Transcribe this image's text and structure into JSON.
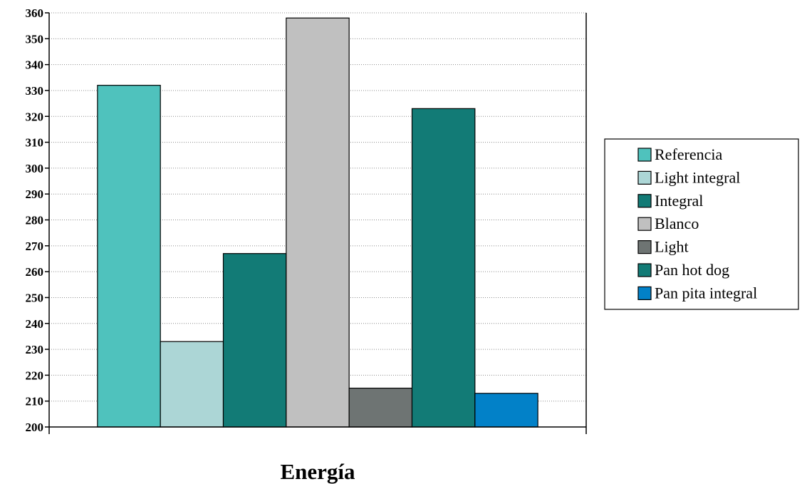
{
  "chart_data": {
    "type": "bar",
    "title": "",
    "xlabel": "",
    "ylabel": "",
    "categories": [
      "Energía"
    ],
    "ylim": [
      200,
      360
    ],
    "ytick_step": 10,
    "grid": true,
    "legend_position": "right",
    "series": [
      {
        "name": "Referencia",
        "values": [
          332
        ],
        "color": "#4fc2bd"
      },
      {
        "name": "Light integral",
        "values": [
          233
        ],
        "color": "#acd6d6"
      },
      {
        "name": "Integral",
        "values": [
          267
        ],
        "color": "#127b76"
      },
      {
        "name": "Blanco",
        "values": [
          358
        ],
        "color": "#c0c0c0"
      },
      {
        "name": "Light",
        "values": [
          215
        ],
        "color": "#6e7473"
      },
      {
        "name": "Pan hot dog",
        "values": [
          323
        ],
        "color": "#127b76"
      },
      {
        "name": "Pan pita integral",
        "values": [
          213
        ],
        "color": "#0281c8"
      }
    ]
  }
}
